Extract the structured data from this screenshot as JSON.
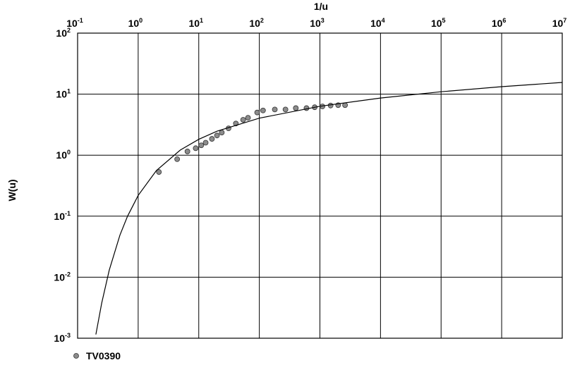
{
  "chart_data": {
    "type": "scatter",
    "xlabel": "1/u",
    "ylabel": "W(u)",
    "xscale": "log",
    "yscale": "log",
    "grid": true,
    "legend": "bottom-left",
    "xlim": [
      0.1,
      10000000
    ],
    "ylim": [
      0.001,
      100
    ],
    "xticks": [
      {
        "value": 0.1,
        "label": [
          "10",
          "-1"
        ]
      },
      {
        "value": 1,
        "label": [
          "10",
          "0"
        ]
      },
      {
        "value": 10,
        "label": [
          "10",
          "1"
        ]
      },
      {
        "value": 100,
        "label": [
          "10",
          "2"
        ]
      },
      {
        "value": 1000,
        "label": [
          "10",
          "3"
        ]
      },
      {
        "value": 10000,
        "label": [
          "10",
          "4"
        ]
      },
      {
        "value": 100000,
        "label": [
          "10",
          "5"
        ]
      },
      {
        "value": 1000000,
        "label": [
          "10",
          "6"
        ]
      },
      {
        "value": 10000000,
        "label": [
          "10",
          "7"
        ]
      }
    ],
    "yticks": [
      {
        "value": 0.001,
        "label": [
          "10",
          "-3"
        ]
      },
      {
        "value": 0.01,
        "label": [
          "10",
          "-2"
        ]
      },
      {
        "value": 0.1,
        "label": [
          "10",
          "-1"
        ]
      },
      {
        "value": 1,
        "label": [
          "10",
          "0"
        ]
      },
      {
        "value": 10,
        "label": [
          "10",
          "1"
        ]
      },
      {
        "value": 100,
        "label": [
          "10",
          "2"
        ]
      }
    ],
    "series": [
      {
        "name": "TV0390",
        "type": "scatter",
        "color": "#8c8c8c",
        "x": [
          2.2,
          4.4,
          6.5,
          8.9,
          11,
          13,
          16.5,
          20,
          24,
          31,
          41,
          54,
          65,
          92,
          115,
          180,
          270,
          400,
          600,
          820,
          1100,
          1500,
          2000,
          2600
        ],
        "values": [
          0.53,
          0.86,
          1.15,
          1.3,
          1.45,
          1.6,
          1.85,
          2.1,
          2.35,
          2.75,
          3.3,
          3.8,
          4.1,
          5.0,
          5.4,
          5.6,
          5.6,
          5.9,
          5.9,
          6.1,
          6.3,
          6.5,
          6.6,
          6.6
        ]
      },
      {
        "type": "line",
        "color": "#000000",
        "x": [
          0.2,
          0.25,
          0.333,
          0.5,
          0.667,
          1,
          2,
          5,
          10,
          20,
          100,
          1000,
          10000,
          100000,
          1000000,
          10000000
        ],
        "values": [
          0.00115,
          0.00378,
          0.0131,
          0.0489,
          0.1,
          0.219,
          0.56,
          1.22,
          1.82,
          2.47,
          4.04,
          6.33,
          8.63,
          10.94,
          13.24,
          15.54
        ]
      }
    ]
  }
}
